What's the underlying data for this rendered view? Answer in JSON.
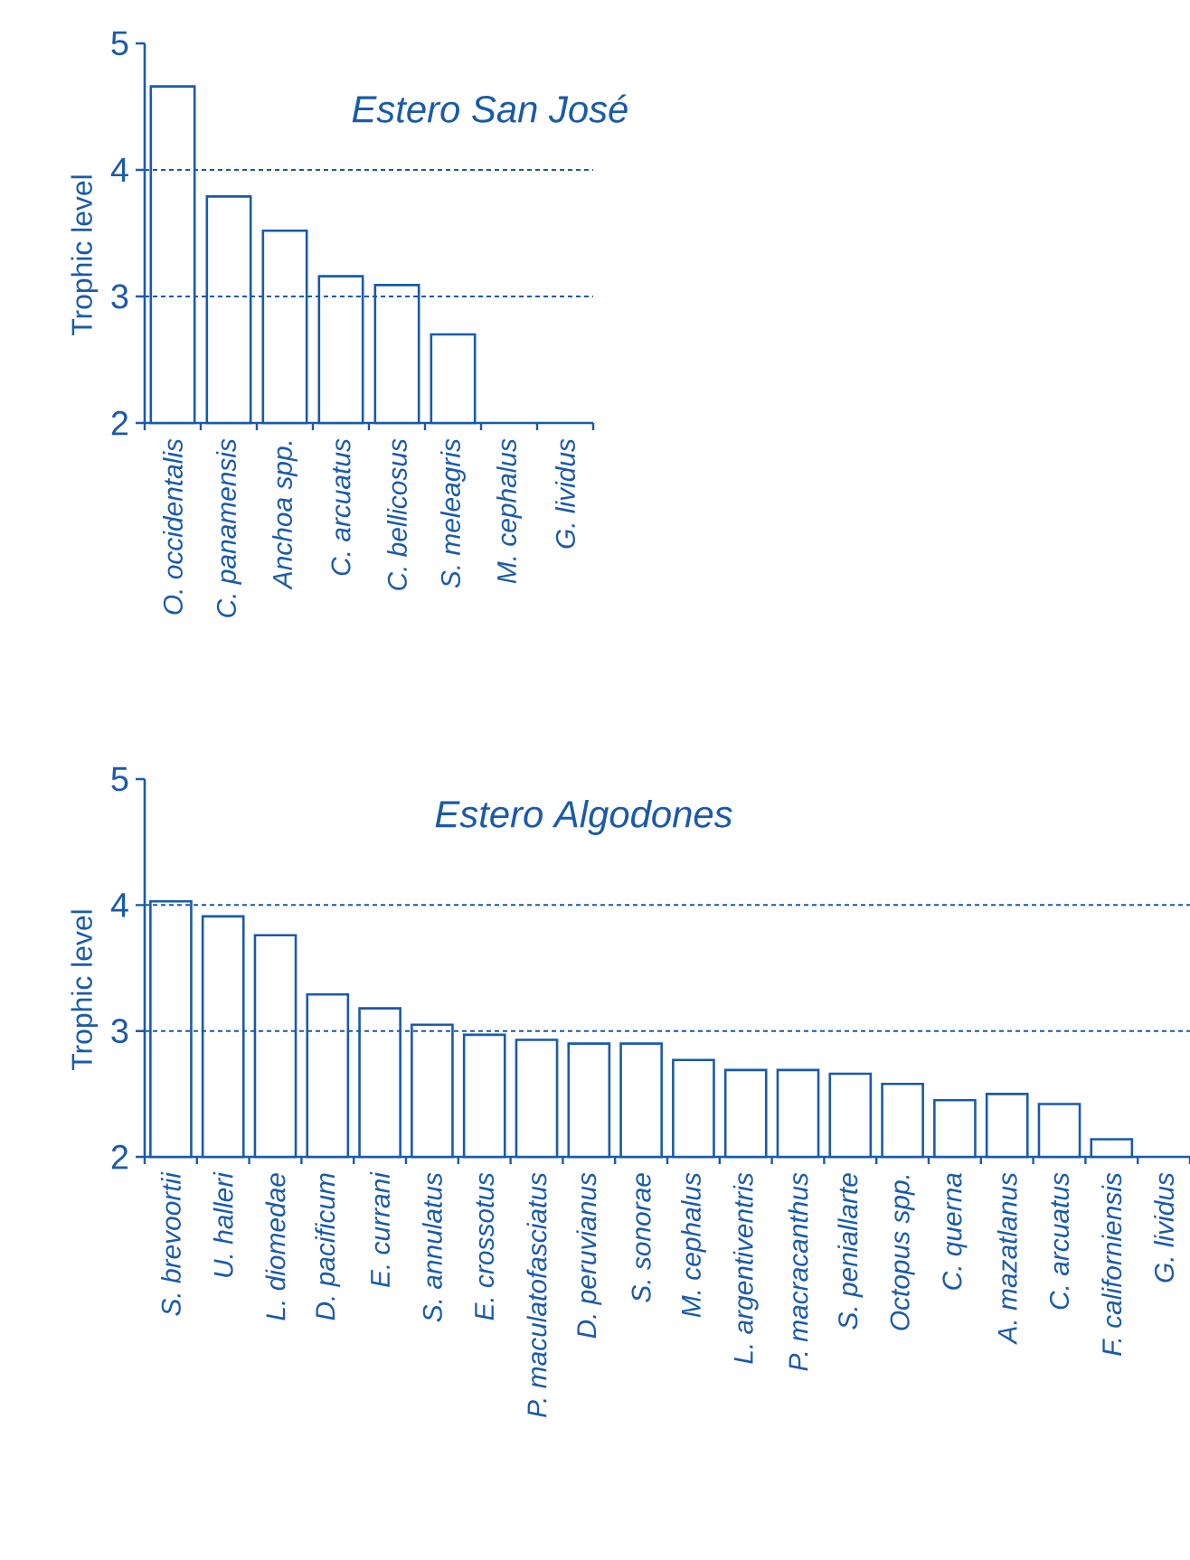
{
  "chart_data": [
    {
      "type": "bar",
      "title": "Estero San José",
      "ylabel": "Trophic level",
      "color": "#1a5aa8",
      "categories": [
        "O. occidentalis",
        "C. panamensis",
        "Anchoa spp.",
        "C. arcuatus",
        "C. bellicosus",
        "S. meleagris",
        "M. cephalus",
        "G. lividus"
      ],
      "values": [
        4.66,
        3.79,
        3.52,
        3.16,
        3.09,
        2.7,
        null,
        null
      ],
      "ylim": [
        2,
        5
      ],
      "yticks": [
        2,
        3,
        4,
        5
      ],
      "ref_lines": [
        {
          "axis": "y",
          "value": 3,
          "line_style": "dashed",
          "color": "#1a5aa8"
        },
        {
          "axis": "y",
          "value": 4,
          "line_style": "dashed",
          "color": "#1a5aa8"
        }
      ]
    },
    {
      "type": "bar",
      "title": "Estero Algodones",
      "ylabel": "Trophic level",
      "color": "#1a5aa8",
      "categories": [
        "S. brevoortii",
        "U. halleri",
        "L. diomedae",
        "D. pacificum",
        "E. currani",
        "S. annulatus",
        "E. crossotus",
        "P. maculatofasciatus",
        "D. peruvianus",
        "S. sonorae",
        "M. cephalus",
        "L. argentiventris",
        "P. macracanthus",
        "S. peniallarte",
        "Octopus spp.",
        "C. querna",
        "A. mazatlanus",
        "C. arcuatus",
        "F. californiensis",
        "G. lividus"
      ],
      "values": [
        4.03,
        3.91,
        3.76,
        3.29,
        3.18,
        3.05,
        2.97,
        2.93,
        2.9,
        2.9,
        2.77,
        2.69,
        2.69,
        2.66,
        2.58,
        2.45,
        2.5,
        2.42,
        2.14,
        null
      ],
      "ylim": [
        2,
        5
      ],
      "yticks": [
        2,
        3,
        4,
        5
      ],
      "ref_lines": [
        {
          "axis": "y",
          "value": 3,
          "line_style": "dashed",
          "color": "#1a5aa8"
        },
        {
          "axis": "y",
          "value": 4,
          "line_style": "dashed",
          "color": "#1a5aa8"
        }
      ]
    }
  ]
}
